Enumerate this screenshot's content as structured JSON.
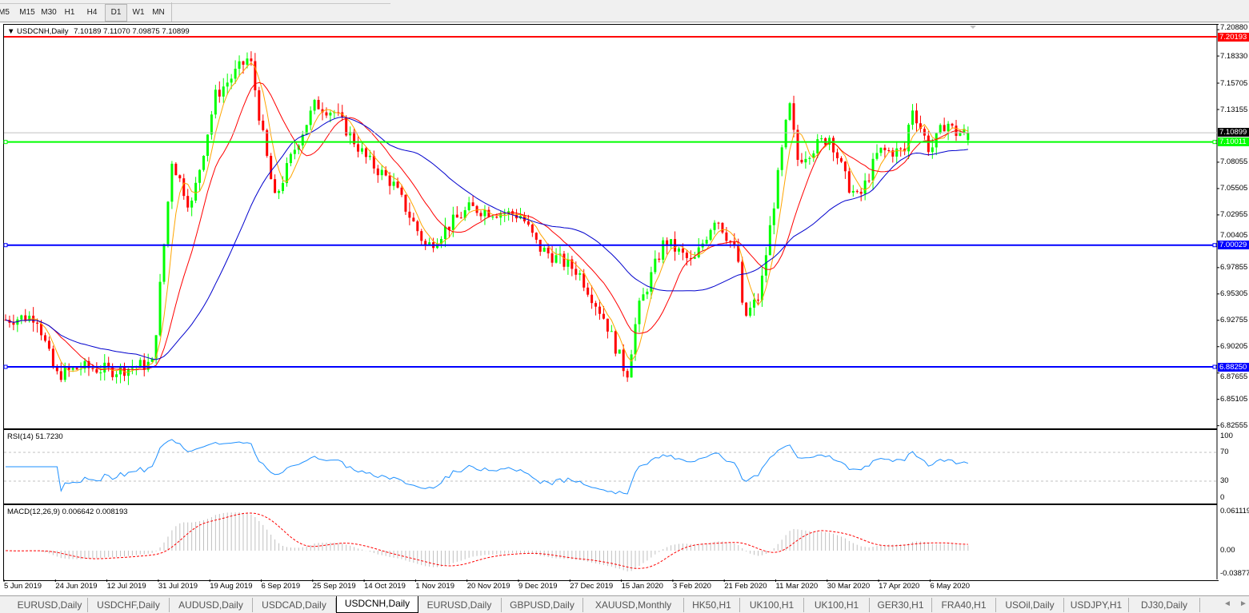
{
  "toolbar": {
    "timeframes": [
      {
        "label": "M5",
        "active": false
      },
      {
        "label": "M15",
        "active": false
      },
      {
        "label": "M30",
        "active": false
      },
      {
        "label": "H1",
        "active": false
      },
      {
        "label": "H4",
        "active": false
      },
      {
        "label": "D1",
        "active": true
      },
      {
        "label": "W1",
        "active": false
      },
      {
        "label": "MN",
        "active": false
      }
    ]
  },
  "chart": {
    "symbol_header": "USDCNH,Daily",
    "ohlc": "7.10189 7.11070 7.09875 7.10899",
    "current_price": "7.10899",
    "colors": {
      "bull": "#00ff00",
      "bear": "#ff0000",
      "ma_fast": "#ffa500",
      "ma_mid": "#ff0000",
      "ma_slow": "#0000cd",
      "rsi": "#1e90ff",
      "macd_hist": "#c0c0c0",
      "macd_signal": "#ff0000"
    },
    "price_axis": [
      "7.20880",
      "7.18330",
      "7.15705",
      "7.13155",
      "7.08055",
      "7.05505",
      "7.02955",
      "7.00405",
      "6.97855",
      "6.95305",
      "6.92755",
      "6.90205",
      "6.87655",
      "6.85105",
      "6.82555"
    ],
    "horizontal_lines": [
      {
        "price": "7.20193",
        "color": "#ff0000"
      },
      {
        "price": "7.10011",
        "color": "#00ff00"
      },
      {
        "price": "7.00029",
        "color": "#0000ff"
      },
      {
        "price": "6.88250",
        "color": "#0000ff"
      }
    ],
    "date_axis": [
      "5 Jun 2019",
      "24 Jun 2019",
      "12 Jul 2019",
      "31 Jul 2019",
      "19 Aug 2019",
      "6 Sep 2019",
      "25 Sep 2019",
      "14 Oct 2019",
      "1 Nov 2019",
      "20 Nov 2019",
      "9 Dec 2019",
      "27 Dec 2019",
      "15 Jan 2020",
      "3 Feb 2020",
      "21 Feb 2020",
      "11 Mar 2020",
      "30 Mar 2020",
      "17 Apr 2020",
      "6 May 2020"
    ],
    "price_path": [
      [
        "2019-06-05",
        6.928
      ],
      [
        "2019-06-17",
        6.932
      ],
      [
        "2019-06-24",
        6.874
      ],
      [
        "2019-07-03",
        6.882
      ],
      [
        "2019-07-15",
        6.879
      ],
      [
        "2019-07-29",
        6.886
      ],
      [
        "2019-08-05",
        7.083
      ],
      [
        "2019-08-12",
        7.036
      ],
      [
        "2019-08-21",
        7.145
      ],
      [
        "2019-09-02",
        7.183
      ],
      [
        "2019-09-06",
        7.114
      ],
      [
        "2019-09-11",
        7.044
      ],
      [
        "2019-09-19",
        7.098
      ],
      [
        "2019-09-26",
        7.137
      ],
      [
        "2019-10-03",
        7.129
      ],
      [
        "2019-10-15",
        7.083
      ],
      [
        "2019-10-24",
        7.06
      ],
      [
        "2019-11-05",
        6.998
      ],
      [
        "2019-11-14",
        7.021
      ],
      [
        "2019-11-21",
        7.036
      ],
      [
        "2019-12-10",
        7.029
      ],
      [
        "2019-12-16",
        6.998
      ],
      [
        "2019-12-30",
        6.975
      ],
      [
        "2020-01-09",
        6.928
      ],
      [
        "2020-01-17",
        6.874
      ],
      [
        "2020-01-21",
        6.936
      ],
      [
        "2020-01-31",
        7.005
      ],
      [
        "2020-02-10",
        6.982
      ],
      [
        "2020-02-18",
        7.029
      ],
      [
        "2020-02-26",
        6.99
      ],
      [
        "2020-02-28",
        6.928
      ],
      [
        "2020-03-05",
        6.951
      ],
      [
        "2020-03-16",
        7.137
      ],
      [
        "2020-03-19",
        7.083
      ],
      [
        "2020-03-31",
        7.106
      ],
      [
        "2020-04-06",
        7.06
      ],
      [
        "2020-04-10",
        7.044
      ],
      [
        "2020-04-17",
        7.091
      ],
      [
        "2020-04-27",
        7.091
      ],
      [
        "2020-04-29",
        7.137
      ],
      [
        "2020-05-06",
        7.091
      ],
      [
        "2020-05-12",
        7.121
      ],
      [
        "2020-05-15",
        7.10899
      ]
    ]
  },
  "rsi": {
    "title": "RSI(14) 51.7230",
    "levels": [
      70,
      30
    ],
    "axis": [
      "100",
      "70",
      "30",
      "0"
    ]
  },
  "macd": {
    "title": "MACD(12,26,9) 0.006642 0.008193",
    "axis": [
      "0.061119",
      "0.00",
      "-0.03877"
    ]
  },
  "tabs": [
    {
      "label": "EURUSD,Daily"
    },
    {
      "label": "USDCHF,Daily"
    },
    {
      "label": "AUDUSD,Daily"
    },
    {
      "label": "USDCAD,Daily"
    },
    {
      "label": "USDCNH,Daily",
      "active": true
    },
    {
      "label": "EURUSD,Daily"
    },
    {
      "label": "GBPUSD,Daily"
    },
    {
      "label": "XAUUSD,Monthly"
    },
    {
      "label": "HK50,H1"
    },
    {
      "label": "UK100,H1"
    },
    {
      "label": "UK100,H1"
    },
    {
      "label": "GER30,H1"
    },
    {
      "label": "FRA40,H1"
    },
    {
      "label": "USOil,Daily"
    },
    {
      "label": "USDJPY,H1"
    },
    {
      "label": "DJ30,Daily"
    }
  ],
  "tab_scroll": {
    "left": "◄",
    "right": "►"
  }
}
